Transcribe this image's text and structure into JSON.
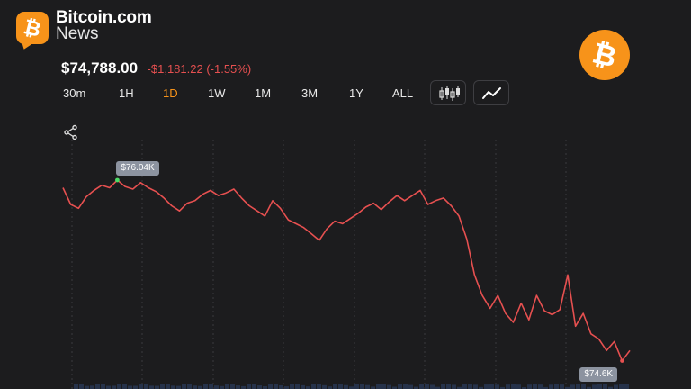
{
  "brand": {
    "name": "Bitcoin.com",
    "sub": "News",
    "icon": "bitcoin-news-logo"
  },
  "quote": {
    "price": "$74,788.00",
    "change": "-$1,181.22 (-1.55%)"
  },
  "timeframes": [
    {
      "label": "30m",
      "active": false
    },
    {
      "label": "1H",
      "active": false
    },
    {
      "label": "1D",
      "active": true
    },
    {
      "label": "1W",
      "active": false
    },
    {
      "label": "1M",
      "active": false
    },
    {
      "label": "3M",
      "active": false
    },
    {
      "label": "1Y",
      "active": false
    },
    {
      "label": "ALL",
      "active": false
    }
  ],
  "chart_tools": [
    "candlestick-icon",
    "line-chart-icon"
  ],
  "chart_data": {
    "type": "line",
    "high_label": "$76.04K",
    "low_label": "$74.6K",
    "line_color": "#e65050",
    "high_marker_color": "#4cd964",
    "series": [
      {
        "values": [
          75.98,
          75.85,
          75.82,
          75.91,
          75.96,
          76.0,
          75.98,
          76.04,
          75.99,
          75.97,
          76.02,
          75.98,
          75.95,
          75.9,
          75.84,
          75.8,
          75.86,
          75.88,
          75.93,
          75.96,
          75.92,
          75.94,
          75.97,
          75.9,
          75.84,
          75.8,
          75.76,
          75.88,
          75.82,
          75.73,
          75.7,
          75.67,
          75.62,
          75.57,
          75.66,
          75.72,
          75.7,
          75.74,
          75.78,
          75.83,
          75.86,
          75.81,
          75.87,
          75.92,
          75.88,
          75.92,
          75.96,
          75.85,
          75.88,
          75.9,
          75.84,
          75.76,
          75.58,
          75.3,
          75.14,
          75.04,
          75.14,
          75.0,
          74.93,
          75.08,
          74.95,
          75.14,
          75.02,
          74.99,
          75.03,
          75.3,
          74.9,
          75.0,
          74.84,
          74.8,
          74.71,
          74.78,
          74.63,
          74.71
        ]
      }
    ]
  },
  "accents": {
    "bitcoin_orange": "#f7931a",
    "negative": "#e65050"
  }
}
